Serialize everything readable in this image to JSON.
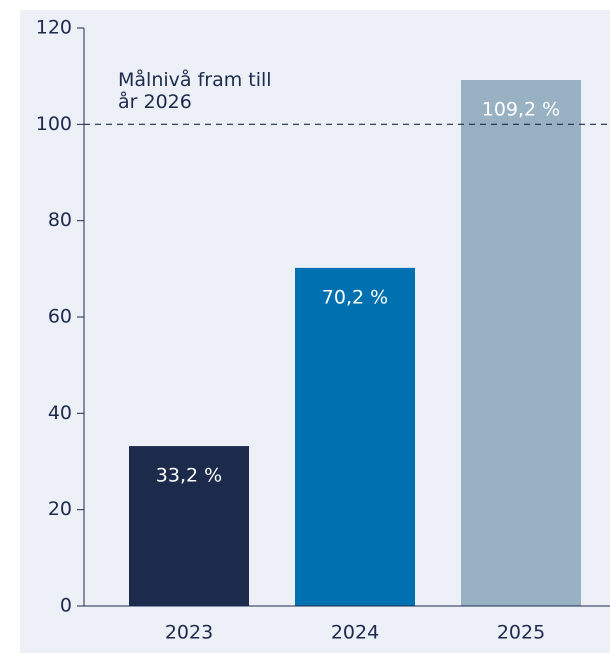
{
  "chart_data": {
    "type": "bar",
    "categories": [
      "2023",
      "2024",
      "2025"
    ],
    "values": [
      33.2,
      70.2,
      109.2
    ],
    "value_labels": [
      "33,2 %",
      "70,2 %",
      "109,2 %"
    ],
    "colors": [
      "#1c2a4b",
      "#0071b0",
      "#98b1c3"
    ],
    "ylim": [
      0,
      120
    ],
    "yticks": [
      0,
      20,
      40,
      60,
      80,
      100,
      120
    ],
    "reference_line": {
      "value": 100,
      "label": [
        "Målnivå fram till",
        "år 2026"
      ]
    }
  }
}
